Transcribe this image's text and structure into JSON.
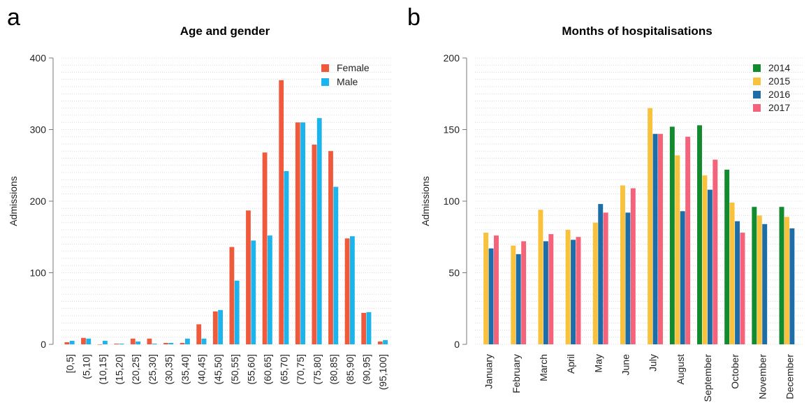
{
  "panels": {
    "a": {
      "letter": "a"
    },
    "b": {
      "letter": "b"
    }
  },
  "chart_data": [
    {
      "type": "bar",
      "title": "Age and gender",
      "xlabel": "",
      "ylabel": "Admissions",
      "ylim": [
        0,
        400
      ],
      "yticks": [
        0,
        100,
        200,
        300,
        400
      ],
      "grid": "horizontal dotted",
      "legend_position": "top-right",
      "categories": [
        "[0,5]",
        "(5,10]",
        "(10,15]",
        "(15,20]",
        "(20,25]",
        "(25,30]",
        "(30,35]",
        "(35,40]",
        "(40,45]",
        "(45,50]",
        "(50,55]",
        "(55,60]",
        "(60,65]",
        "(65,70]",
        "(70,75]",
        "(75,80]",
        "(80,85]",
        "(85,90]",
        "(90,95]",
        "(95,100]"
      ],
      "series": [
        {
          "name": "Female",
          "color": "#f05a3c",
          "values": [
            3,
            9,
            0,
            1,
            8,
            8,
            2,
            2,
            28,
            46,
            136,
            187,
            268,
            369,
            310,
            279,
            270,
            148,
            44,
            4
          ]
        },
        {
          "name": "Male",
          "color": "#1cb4ec",
          "values": [
            5,
            8,
            5,
            1,
            4,
            1,
            2,
            8,
            8,
            48,
            89,
            145,
            152,
            242,
            310,
            316,
            220,
            151,
            45,
            6
          ]
        }
      ]
    },
    {
      "type": "bar",
      "title": "Months of hospitalisations",
      "xlabel": "",
      "ylabel": "Admissions",
      "ylim": [
        0,
        200
      ],
      "yticks": [
        0,
        50,
        100,
        150,
        200
      ],
      "grid": "horizontal dotted",
      "legend_position": "top-right",
      "categories": [
        "January",
        "February",
        "March",
        "April",
        "May",
        "June",
        "July",
        "August",
        "September",
        "October",
        "November",
        "December"
      ],
      "series": [
        {
          "name": "2014",
          "color": "#128a2e",
          "values": [
            null,
            null,
            null,
            null,
            null,
            null,
            null,
            152,
            153,
            122,
            96,
            96
          ]
        },
        {
          "name": "2015",
          "color": "#f9c23c",
          "values": [
            78,
            69,
            94,
            80,
            85,
            111,
            165,
            132,
            118,
            99,
            90,
            89
          ]
        },
        {
          "name": "2016",
          "color": "#1c6da8",
          "values": [
            67,
            63,
            72,
            73,
            98,
            92,
            147,
            93,
            108,
            86,
            84,
            81
          ]
        },
        {
          "name": "2017",
          "color": "#f4637a",
          "values": [
            76,
            72,
            77,
            75,
            92,
            109,
            147,
            145,
            129,
            78,
            null,
            null
          ]
        }
      ]
    }
  ]
}
